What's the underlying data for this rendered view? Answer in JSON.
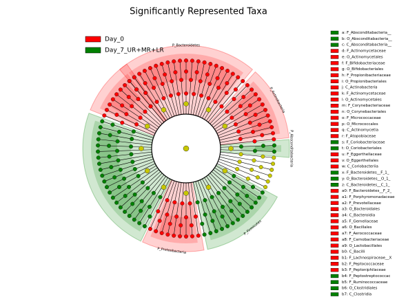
{
  "title": "Significantly Represented Taxa",
  "legend": [
    {
      "label": "Day_0",
      "color": "#ff0000"
    },
    {
      "label": "Day_7_UR+MR+LR",
      "color": "#008000"
    }
  ],
  "phyla": [
    {
      "label": "P_Bacteroidetes",
      "color": "#ff0000"
    },
    {
      "label": "P_Actinobacteria",
      "color": "#ff0000"
    },
    {
      "label": "P_Absconditabacteria",
      "color": "#008000"
    },
    {
      "label": "P_Firmicutes",
      "color": "#008000"
    },
    {
      "label": "P_Proteobacteria",
      "color": "#ff0000"
    }
  ],
  "key": [
    {
      "text": "a: F_Absconditabacteria__",
      "color": "#008000"
    },
    {
      "text": "b: O_Absconditabacteria__",
      "color": "#008000"
    },
    {
      "text": "c: C_Absconditabacteria__",
      "color": "#008000"
    },
    {
      "text": "d: F_Actinomycetaceae",
      "color": "#ff0000"
    },
    {
      "text": "e: O_Actinomycetales",
      "color": "#ff0000"
    },
    {
      "text": "f: F_Bifidobacteriaceae",
      "color": "#ff0000"
    },
    {
      "text": "g: O_Bifidobacteriales",
      "color": "#ff0000"
    },
    {
      "text": "h: F_Propionibacteriaceae",
      "color": "#ff0000"
    },
    {
      "text": "i: O_Propionibacteriales",
      "color": "#ff0000"
    },
    {
      "text": "j: C_Actinobacteria",
      "color": "#ff0000"
    },
    {
      "text": "k: F_Actinomycetaceae",
      "color": "#ff0000"
    },
    {
      "text": "l: O_Actinomycetales",
      "color": "#ff0000"
    },
    {
      "text": "m: F_Corynebacteriaceae",
      "color": "#ff0000"
    },
    {
      "text": "n: O_Corynebacteriales",
      "color": "#ff0000"
    },
    {
      "text": "o: F_Micrococcaceae",
      "color": "#ff0000"
    },
    {
      "text": "p: O_Micrococcales",
      "color": "#ff0000"
    },
    {
      "text": "q: C_Actinomycetia",
      "color": "#ff0000"
    },
    {
      "text": "r: F_Atopobiaceae",
      "color": "#ff0000"
    },
    {
      "text": "s: F_Coriobacteriaceae",
      "color": "#008000"
    },
    {
      "text": "t: O_Coriobacteriales",
      "color": "#008000"
    },
    {
      "text": "u: F_Eggerthellaceae",
      "color": "#ff0000"
    },
    {
      "text": "v: O_Eggerthellales",
      "color": "#ff0000"
    },
    {
      "text": "w: C_Coriobacteriia",
      "color": "#ff0000"
    },
    {
      "text": "x: F_Bacteroidetes__F_1_",
      "color": "#008000"
    },
    {
      "text": "y: O_Bacteroidetes__O_1_",
      "color": "#008000"
    },
    {
      "text": "z: C_Bacteroidetes__C_1_",
      "color": "#008000"
    },
    {
      "text": "a0: F_Bacteroidetes__F_2_",
      "color": "#ff0000"
    },
    {
      "text": "a1: F_Porphyromonadaceae",
      "color": "#ff0000"
    },
    {
      "text": "a2: F_Prevotellaceae",
      "color": "#ff0000"
    },
    {
      "text": "a3: O_Bacteroidales",
      "color": "#ff0000"
    },
    {
      "text": "a4: C_Bacteroidia",
      "color": "#ff0000"
    },
    {
      "text": "a5: F_Gemellaceae",
      "color": "#ff0000"
    },
    {
      "text": "a6: O_Bacillales",
      "color": "#ff0000"
    },
    {
      "text": "a7: F_Aerococcaceae",
      "color": "#ff0000"
    },
    {
      "text": "a8: F_Carnobacteriaceae",
      "color": "#ff0000"
    },
    {
      "text": "a9: O_Lactobacillales",
      "color": "#ff0000"
    },
    {
      "text": "b0: C_Bacilli",
      "color": "#ff0000"
    },
    {
      "text": "b1: F_Lachnospiraceae__X",
      "color": "#ff0000"
    },
    {
      "text": "b2: F_Peptococcaceae",
      "color": "#ff0000"
    },
    {
      "text": "b3: F_Peptoniphilaceae",
      "color": "#ff0000"
    },
    {
      "text": "b4: F_Peptostreptococcac",
      "color": "#008000"
    },
    {
      "text": "b5: F_Ruminococcaceae",
      "color": "#008000"
    },
    {
      "text": "b6: O_Clostridiales",
      "color": "#008000"
    },
    {
      "text": "b7: C_Clostridia",
      "color": "#008000"
    }
  ]
}
